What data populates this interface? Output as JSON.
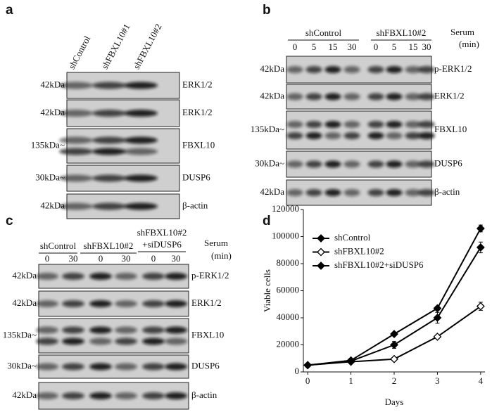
{
  "panels": [
    {
      "label": "a",
      "lanes": [
        "shControl",
        "shFBXL10#1",
        "shFBXL10#2"
      ],
      "rows": [
        {
          "marker": "42kDa",
          "protein": "ERK1/2"
        },
        {
          "marker": "42kDa",
          "protein": "ERK1/2"
        },
        {
          "marker": "135kDa~",
          "protein": "FBXL10"
        },
        {
          "marker": "30kDa~",
          "protein": "DUSP6"
        },
        {
          "marker": "42kDa",
          "protein": "β-actin"
        }
      ]
    },
    {
      "label": "b",
      "groups": [
        [
          "shControl"
        ],
        [
          "shFBXL10#2"
        ]
      ],
      "times": [
        0,
        5,
        15,
        30,
        0,
        5,
        15,
        30
      ],
      "condition": "Serum",
      "unit": "(min)",
      "rows": [
        {
          "marker": "42kDa",
          "protein": "p-ERK1/2"
        },
        {
          "marker": "42kDa",
          "protein": "ERK1/2"
        },
        {
          "marker": "135kDa~",
          "protein": "FBXL10"
        },
        {
          "marker": "30kDa~",
          "protein": "DUSP6"
        },
        {
          "marker": "42kDa",
          "protein": "β-actin"
        }
      ]
    },
    {
      "label": "c",
      "groups": [
        [
          "shControl"
        ],
        [
          "shFBXL10#2"
        ],
        [
          "shFBXL10#2",
          "+siDUSP6"
        ]
      ],
      "times": [
        0,
        30,
        0,
        30,
        0,
        30
      ],
      "condition": "Serum",
      "unit": "(min)",
      "rows": [
        {
          "marker": "42kDa",
          "protein": "p-ERK1/2"
        },
        {
          "marker": "42kDa",
          "protein": "ERK1/2"
        },
        {
          "marker": "135kDa~",
          "protein": "FBXL10"
        },
        {
          "marker": "30kDa~",
          "protein": "DUSP6"
        },
        {
          "marker": "42kDa",
          "protein": "β-actin"
        }
      ]
    }
  ],
  "chart_data": {
    "label": "d",
    "type": "line",
    "x_label": "Days",
    "y_label": "Viable cells",
    "x": [
      0,
      1,
      2,
      3,
      4
    ],
    "xlim": [
      -0.1,
      4.1
    ],
    "xticks": [
      0,
      1,
      2,
      3,
      4
    ],
    "ylim": [
      0,
      120000
    ],
    "yticks": [
      0,
      20000,
      40000,
      60000,
      80000,
      100000,
      120000
    ],
    "legend": "upper-left",
    "series": [
      {
        "name": "shControl",
        "color": "#000000",
        "filled": true,
        "values": [
          5000,
          8500,
          28000,
          47000,
          106000
        ],
        "errors": [
          500,
          800,
          1200,
          1500,
          2500
        ]
      },
      {
        "name": "shFBXL10#2",
        "color": "#000000",
        "filled": false,
        "values": [
          5000,
          7500,
          9500,
          26000,
          48500
        ],
        "errors": [
          500,
          700,
          1000,
          1200,
          3000
        ]
      },
      {
        "name": "shFBXL10#2+siDUSP6",
        "color": "#000000",
        "filled": true,
        "values": [
          5000,
          8000,
          20000,
          40000,
          92000
        ],
        "errors": [
          500,
          800,
          2500,
          4000,
          4000
        ]
      }
    ]
  }
}
